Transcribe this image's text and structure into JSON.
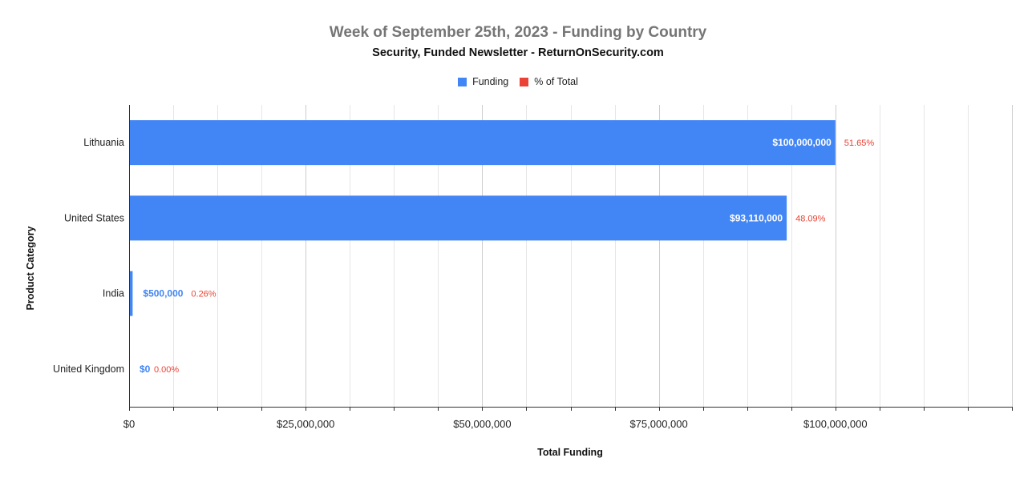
{
  "chart_data": {
    "type": "bar",
    "orientation": "horizontal",
    "title": "Week of September 25th, 2023 - Funding by Country",
    "subtitle": "Security, Funded Newsletter - ReturnOnSecurity.com",
    "xlabel": "Total Funding",
    "ylabel": "Product Category",
    "categories": [
      "Lithuania",
      "United States",
      "India",
      "United Kingdom"
    ],
    "series": [
      {
        "name": "Funding",
        "color": "#4285f4",
        "values": [
          100000000,
          93110000,
          500000,
          0
        ],
        "labels": [
          "$100,000,000",
          "$93,110,000",
          "$500,000",
          "$0"
        ]
      },
      {
        "name": "% of Total",
        "color": "#ea4335",
        "values": [
          51.65,
          48.09,
          0.26,
          0.0
        ],
        "labels": [
          "51.65%",
          "48.09%",
          "0.26%",
          "0.00%"
        ]
      }
    ],
    "xlim": [
      0,
      125000000
    ],
    "xticks": [
      0,
      25000000,
      50000000,
      75000000,
      100000000
    ],
    "xtick_labels": [
      "$0",
      "$25,000,000",
      "$50,000,000",
      "$75,000,000",
      "$100,000,000"
    ],
    "minor_gridlines_per_major": 3,
    "grid": true,
    "legend_position": "top"
  }
}
